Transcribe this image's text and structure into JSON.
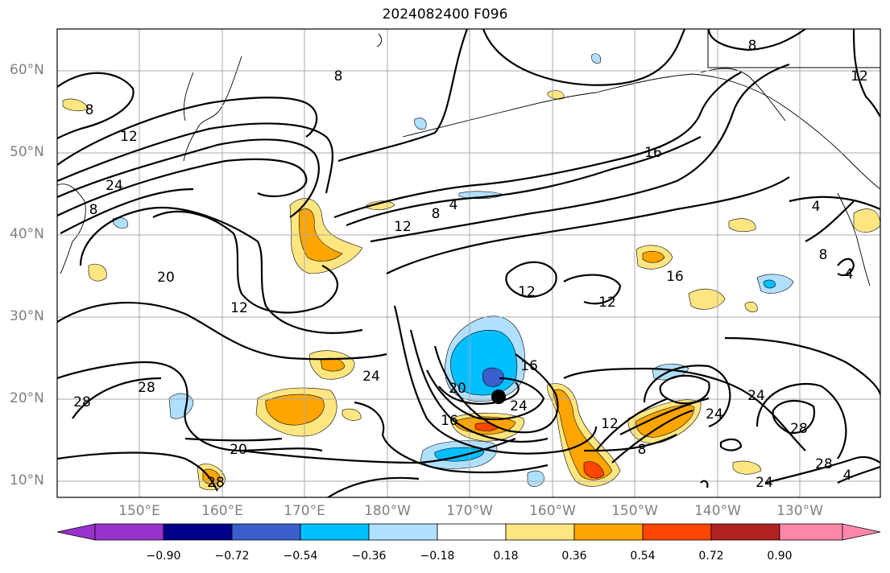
{
  "title": "2024082400 F096",
  "latitude_labels": [
    "60°N",
    "50°N",
    "40°N",
    "30°N",
    "20°N",
    "10°N"
  ],
  "longitude_labels": [
    "150°E",
    "160°E",
    "170°E",
    "180°W",
    "170°W",
    "160°W",
    "150°W",
    "140°W",
    "130°W"
  ],
  "contour_labels": [
    "8",
    "8",
    "12",
    "24",
    "8",
    "4",
    "8",
    "12",
    "16",
    "8",
    "4",
    "8",
    "4",
    "20",
    "12",
    "12",
    "16",
    "12",
    "24",
    "28",
    "28",
    "20",
    "16",
    "24",
    "12",
    "8",
    "24",
    "28",
    "24",
    "28",
    "20",
    "28",
    "24",
    "16",
    "4",
    "12"
  ],
  "colorbar": {
    "ticks": [
      "−0.90",
      "−0.72",
      "−0.54",
      "−0.36",
      "−0.18",
      "0.18",
      "0.36",
      "0.54",
      "0.72",
      "0.90"
    ],
    "colors": [
      "#9932cc",
      "#00008b",
      "#3a5fcd",
      "#00bfff",
      "#b0e0ff",
      "#ffffff",
      "#ffe680",
      "#ffa500",
      "#ff4500",
      "#b22222",
      "#ff88aa"
    ]
  }
}
